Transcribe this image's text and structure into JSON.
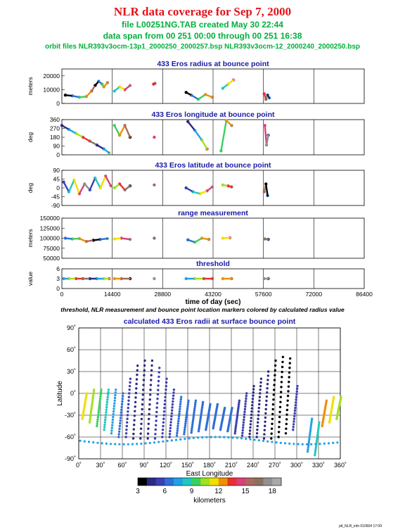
{
  "header": {
    "title": "NLR data coverage for Sep 7, 2000",
    "file_line": "file L00251NG.TAB created May 30 22:44",
    "span_line": "data span from 00 251 00:00 through 00 251 16:38",
    "orbit_line": "orbit files NLR393v3ocm-13p1_2000250_2000257.bsp NLR393v3ocm-12_2000240_2000250.bsp"
  },
  "caption": "threshold, NLR measurement and bounce point location markers colored by calculated radius value",
  "footer": "plt_NLR_info 010504 17:09",
  "colors": {
    "title": "#e3131b",
    "subtitle": "#00b03c",
    "panel_title": "#1a1aa6",
    "colorscale": [
      "#000000",
      "#2a2a80",
      "#3b3fb0",
      "#2f6fd6",
      "#22a0e6",
      "#20c8c0",
      "#3ad060",
      "#a0e020",
      "#f0e000",
      "#f09000",
      "#e83030",
      "#d84078",
      "#a86a60",
      "#8a7060",
      "#909090",
      "#a8a8a8"
    ]
  },
  "chart_data": [
    {
      "type": "scatter",
      "title": "433 Eros radius at bounce point",
      "ylabel": "meters",
      "ylim": [
        0,
        25000
      ],
      "yticks": [
        "0",
        "10000",
        "20000"
      ],
      "xlim": [
        0,
        86400
      ],
      "series": [
        {
          "x": [
            1000,
            3000,
            5000,
            7000,
            8500,
            9500,
            10500,
            11500,
            12000,
            13000
          ],
          "y": [
            6000,
            5500,
            4500,
            5000,
            9000,
            13000,
            16000,
            14000,
            12000,
            15000
          ]
        },
        {
          "x": [
            15000,
            16500,
            18000,
            19500
          ],
          "y": [
            9000,
            12000,
            10000,
            13000
          ]
        },
        {
          "x": [
            26200,
            26600
          ],
          "y": [
            14000,
            14500
          ]
        },
        {
          "x": [
            35500,
            37000,
            39000,
            41000,
            43000
          ],
          "y": [
            8000,
            6000,
            3000,
            6500,
            4500
          ]
        },
        {
          "x": [
            46000,
            47500,
            49000
          ],
          "y": [
            11000,
            14000,
            17000
          ]
        },
        {
          "x": [
            57800,
            58300,
            58800,
            59300
          ],
          "y": [
            7000,
            3000,
            6000,
            4000
          ]
        }
      ]
    },
    {
      "type": "scatter",
      "title": "433 Eros longitude at bounce point",
      "ylabel": "deg",
      "ylim": [
        0,
        360
      ],
      "yticks": [
        "0",
        "90",
        "180",
        "270",
        "360"
      ],
      "xlim": [
        0,
        86400
      ],
      "series": [
        {
          "x": [
            0,
            2000,
            4000,
            6000,
            8000,
            10000,
            12000,
            13500
          ],
          "y": [
            300,
            260,
            220,
            180,
            140,
            100,
            60,
            20
          ]
        },
        {
          "x": [
            15000,
            16500,
            18000,
            19500
          ],
          "y": [
            300,
            200,
            300,
            180
          ]
        },
        {
          "x": [
            26400
          ],
          "y": [
            180
          ]
        },
        {
          "x": [
            36000,
            38000,
            40000,
            41500
          ],
          "y": [
            340,
            250,
            150,
            60
          ]
        },
        {
          "x": [
            45500,
            47000,
            48500
          ],
          "y": [
            40,
            350,
            300
          ]
        },
        {
          "x": [
            58000,
            58500,
            59000
          ],
          "y": [
            300,
            100,
            200
          ]
        }
      ]
    },
    {
      "type": "scatter",
      "title": "433 Eros latitude at bounce point",
      "ylabel": "deg",
      "ylim": [
        -90,
        90
      ],
      "yticks": [
        "-90",
        "-45",
        "0",
        "45",
        "90"
      ],
      "xlim": [
        0,
        86400
      ],
      "series": [
        {
          "x": [
            500,
            2000,
            3500,
            5000,
            6500,
            8000,
            9500,
            11000,
            12500,
            14000
          ],
          "y": [
            30,
            -20,
            40,
            -30,
            20,
            -10,
            50,
            0,
            60,
            10
          ]
        },
        {
          "x": [
            15000,
            16500,
            18000,
            19500
          ],
          "y": [
            0,
            20,
            -10,
            10
          ]
        },
        {
          "x": [
            26400
          ],
          "y": [
            15
          ]
        },
        {
          "x": [
            35500,
            37500,
            39500,
            41500,
            43000
          ],
          "y": [
            0,
            -20,
            -30,
            -15,
            5
          ]
        },
        {
          "x": [
            46000,
            47500,
            48500
          ],
          "y": [
            15,
            10,
            5
          ]
        },
        {
          "x": [
            57800,
            58300,
            58800
          ],
          "y": [
            -20,
            20,
            -40
          ]
        }
      ]
    },
    {
      "type": "scatter",
      "title": "range measurement",
      "ylabel": "meters",
      "ylim": [
        50000,
        150000
      ],
      "yticks": [
        "50000",
        "75000",
        "100000",
        "125000",
        "150000"
      ],
      "xlim": [
        0,
        86400
      ],
      "series": [
        {
          "x": [
            1000,
            3000,
            5000,
            7000,
            9000,
            11000,
            13000
          ],
          "y": [
            100000,
            98000,
            99000,
            92000,
            95000,
            97000,
            99000
          ]
        },
        {
          "x": [
            15000,
            17000,
            19500
          ],
          "y": [
            98000,
            100000,
            97000
          ]
        },
        {
          "x": [
            26400
          ],
          "y": [
            100000
          ]
        },
        {
          "x": [
            36000,
            38000,
            40000,
            42000
          ],
          "y": [
            96000,
            90000,
            100000,
            97000
          ]
        },
        {
          "x": [
            46000,
            48000
          ],
          "y": [
            100000,
            101000
          ]
        },
        {
          "x": [
            58000,
            59000
          ],
          "y": [
            98000,
            97000
          ]
        }
      ]
    },
    {
      "type": "scatter",
      "title": "threshold",
      "ylabel": "value",
      "ylim": [
        0,
        6
      ],
      "yticks": [
        "0",
        "3",
        "6"
      ],
      "xlim": [
        0,
        86400
      ],
      "xlabel": "time of day (sec)",
      "xticks": [
        "0",
        "14400",
        "28800",
        "43200",
        "57600",
        "72000",
        "86400"
      ],
      "series": [
        {
          "x": [
            500,
            2000,
            4000,
            6000,
            8000,
            10000,
            12000,
            13500
          ],
          "y": [
            3,
            3,
            3,
            3,
            3,
            3,
            3,
            3
          ]
        },
        {
          "x": [
            15000,
            17000,
            19500
          ],
          "y": [
            3,
            3,
            3
          ]
        },
        {
          "x": [
            26400
          ],
          "y": [
            3
          ]
        },
        {
          "x": [
            35500,
            38000,
            40500,
            43000
          ],
          "y": [
            3,
            3,
            3,
            3
          ]
        },
        {
          "x": [
            46000,
            48500
          ],
          "y": [
            3,
            3
          ]
        },
        {
          "x": [
            57800,
            59000
          ],
          "y": [
            3,
            3
          ]
        }
      ]
    },
    {
      "type": "scatter",
      "title": "calculated 433 Eros radii at surface bounce point",
      "xlabel": "East Longitude",
      "ylabel": "Latitude",
      "xlim": [
        0,
        360
      ],
      "ylim": [
        -90,
        90
      ],
      "xticks": [
        "0˚",
        "30˚",
        "60˚",
        "90˚",
        "120˚",
        "150˚",
        "180˚",
        "210˚",
        "240˚",
        "270˚",
        "300˚",
        "330˚",
        "360˚"
      ],
      "yticks": [
        "-90˚",
        "-60˚",
        "-30˚",
        "0˚",
        "30˚",
        "60˚",
        "90˚"
      ],
      "swaths": [
        {
          "lon": 5,
          "lat0": -35,
          "lat1": 0,
          "r": 11
        },
        {
          "lon": 15,
          "lat0": -40,
          "lat1": 5,
          "r": 10
        },
        {
          "lon": 25,
          "lat0": -45,
          "lat1": 5,
          "r": 9
        },
        {
          "lon": 35,
          "lat0": -50,
          "lat1": 5,
          "r": 8
        },
        {
          "lon": 45,
          "lat0": -55,
          "lat1": 5,
          "r": 7
        },
        {
          "lon": 55,
          "lat0": -60,
          "lat1": 0,
          "r": 6
        },
        {
          "lon": 65,
          "lat0": -60,
          "lat1": 20,
          "r": 5
        },
        {
          "lon": 75,
          "lat0": -62,
          "lat1": 38,
          "r": 4
        },
        {
          "lon": 85,
          "lat0": -62,
          "lat1": 45,
          "r": 4
        },
        {
          "lon": 95,
          "lat0": -62,
          "lat1": 45,
          "r": 4
        },
        {
          "lon": 105,
          "lat0": -62,
          "lat1": 35,
          "r": 5
        },
        {
          "lon": 115,
          "lat0": -60,
          "lat1": 20,
          "r": 5
        },
        {
          "lon": 125,
          "lat0": -60,
          "lat1": 5,
          "r": 5
        },
        {
          "lon": 135,
          "lat0": -58,
          "lat1": -5,
          "r": 6
        },
        {
          "lon": 145,
          "lat0": -56,
          "lat1": -10,
          "r": 6
        },
        {
          "lon": 155,
          "lat0": -54,
          "lat1": -10,
          "r": 6
        },
        {
          "lon": 165,
          "lat0": -52,
          "lat1": -12,
          "r": 6
        },
        {
          "lon": 175,
          "lat0": -50,
          "lat1": -15,
          "r": 6
        },
        {
          "lon": 185,
          "lat0": -48,
          "lat1": -15,
          "r": 6
        },
        {
          "lon": 195,
          "lat0": -50,
          "lat1": -20,
          "r": 6
        },
        {
          "lon": 205,
          "lat0": -52,
          "lat1": -20,
          "r": 6
        },
        {
          "lon": 215,
          "lat0": -55,
          "lat1": -10,
          "r": 5
        },
        {
          "lon": 225,
          "lat0": -58,
          "lat1": 0,
          "r": 5
        },
        {
          "lon": 235,
          "lat0": -60,
          "lat1": 10,
          "r": 4
        },
        {
          "lon": 245,
          "lat0": -60,
          "lat1": 20,
          "r": 4
        },
        {
          "lon": 255,
          "lat0": -62,
          "lat1": 30,
          "r": 4
        },
        {
          "lon": 265,
          "lat0": -62,
          "lat1": 45,
          "r": 3
        },
        {
          "lon": 275,
          "lat0": -60,
          "lat1": 50,
          "r": 3
        },
        {
          "lon": 285,
          "lat0": -55,
          "lat1": 48,
          "r": 3
        },
        {
          "lon": 295,
          "lat0": -50,
          "lat1": 10,
          "r": 5
        },
        {
          "lon": 315,
          "lat0": -80,
          "lat1": -35,
          "r": 7
        },
        {
          "lon": 325,
          "lat0": -85,
          "lat1": -40,
          "r": 8
        },
        {
          "lon": 335,
          "lat0": -45,
          "lat1": -10,
          "r": 12
        },
        {
          "lon": 345,
          "lat0": -40,
          "lat1": -5,
          "r": 11
        },
        {
          "lon": 355,
          "lat0": -35,
          "lat1": -5,
          "r": 10
        }
      ],
      "colorbar": {
        "label": "kilometers",
        "range": [
          3,
          19
        ],
        "ticks": [
          "3",
          "6",
          "9",
          "12",
          "15",
          "18"
        ]
      }
    }
  ]
}
